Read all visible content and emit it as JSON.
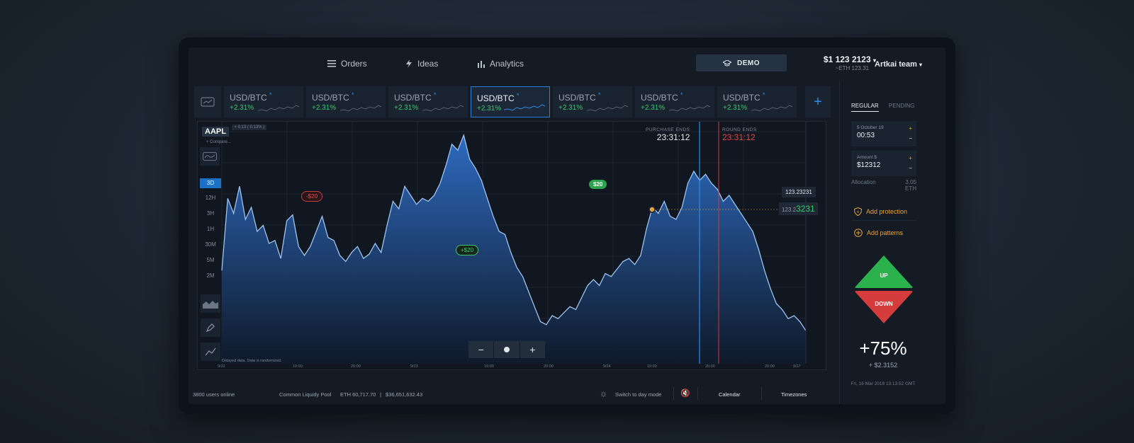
{
  "nav": {
    "orders": "Orders",
    "ideas": "Ideas",
    "analytics": "Analytics",
    "demo": "DEMO",
    "balance": "$1 123 2123",
    "balance_eth": "~ETH 123.31",
    "team": "Artkai team"
  },
  "tabs": [
    {
      "pair": "USD/BTC",
      "change": "+2.31%"
    },
    {
      "pair": "USD/BTC",
      "change": "+2.31%"
    },
    {
      "pair": "USD/BTC",
      "change": "+2.31%"
    },
    {
      "pair": "USD/BTC",
      "change": "+2.31%"
    },
    {
      "pair": "USD/BTC",
      "change": "+2.31%"
    },
    {
      "pair": "USD/BTC",
      "change": "+2.31%"
    },
    {
      "pair": "USD/BTC",
      "change": "+2.31%"
    }
  ],
  "chart": {
    "symbol": "AAPL",
    "symbol_detail": "+ 0.13 ( 0.13% )",
    "compare": "Compare...",
    "timeframes": [
      "3D",
      "12H",
      "3H",
      "1H",
      "30M",
      "5M",
      "2M"
    ],
    "active_timeframe": "3D",
    "purchase_label": "PURCHASE ENDS",
    "purchase_time": "23:31:12",
    "round_label": "ROUND ENDS",
    "round_time": "23:31:12",
    "price_tag1": "123.23231",
    "price_tag2_prefix": "123.2",
    "price_tag2_highlight": "3231",
    "bubble_red": "-$20",
    "bubble_green1": "+$20",
    "bubble_green2": "$20",
    "disclaimer": "Delayed data. Data is randomized.",
    "xlabels": [
      "9/22",
      "19:00",
      "20:00",
      "9/23",
      "19:00",
      "20:00",
      "9/24",
      "19:00",
      "20:00",
      "20:00",
      "9/27"
    ],
    "series": [
      62,
      110,
      100,
      118,
      96,
      104,
      88,
      92,
      80,
      82,
      70,
      95,
      99,
      78,
      72,
      78,
      88,
      98,
      84,
      82,
      72,
      68,
      74,
      78,
      70,
      73,
      80,
      74,
      92,
      108,
      103,
      118,
      112,
      106,
      110,
      108,
      112,
      120,
      132,
      146,
      142,
      152,
      136,
      130,
      122,
      110,
      98,
      88,
      86,
      74,
      64,
      58,
      48,
      38,
      28,
      26,
      32,
      30,
      34,
      38,
      36,
      44,
      52,
      56,
      52,
      60,
      58,
      63,
      68,
      70,
      66,
      72,
      90,
      104,
      100,
      108,
      98,
      96,
      104,
      120,
      128,
      122,
      126,
      120,
      116,
      108,
      112,
      106,
      100,
      94,
      88,
      76,
      62,
      50,
      40,
      36,
      30,
      32,
      28,
      22
    ],
    "series2_visible": true
  },
  "footer": {
    "users": "3800 users online",
    "pool": "Common Liquidy Pool",
    "eth": "ETH 60,717.70",
    "usd": "$36,651,632.43",
    "daymode": "Switch to day mode",
    "calendar": "Calendar",
    "timezones": "Timezones"
  },
  "panel": {
    "tab_regular": "REGULAR",
    "tab_pending": "PENDING",
    "date_label": "5 October 19",
    "date_time": "00:53",
    "amount_label": "Amount $",
    "amount_value": "$12312",
    "allocation_label": "Allocation",
    "allocation_value": "3.05",
    "allocation_unit": "ETH",
    "add_protection": "Add protection",
    "add_patterns": "Add patterns",
    "up": "UP",
    "down": "DOWN",
    "percent": "+75%",
    "percent_sub": "+ $2.3152",
    "datetime": "Fri, 16 Mar 2018 13:13:52 GMT"
  },
  "colors": {
    "accent": "#2f8be6",
    "positive": "#3dc76a",
    "negative": "#e04848",
    "warning": "#e8a33a",
    "area_top": "#2f6fc8",
    "area_bottom": "#0f1a2b"
  }
}
